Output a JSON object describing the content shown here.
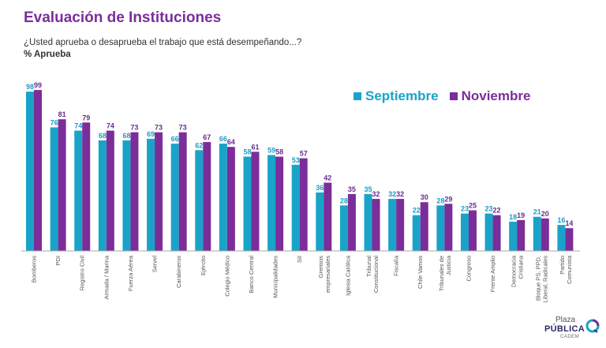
{
  "header": {
    "title": "Evaluación de Instituciones",
    "subtitle": "¿Usted aprueba o desaprueba el trabajo que está desempeñando...?",
    "metric": "% Aprueba"
  },
  "colors": {
    "septiembre": "#1aa3c8",
    "noviembre": "#7b2d9a",
    "label_sep": "#1a9cc6",
    "label_nov": "#6b2a8f"
  },
  "logo": {
    "line1": "Plaza",
    "line2": "PÚBLICA",
    "line3": "CADEM"
  },
  "chart_data": {
    "type": "bar",
    "categories": [
      "Bomberos",
      "PDI",
      "Registro Civil",
      "Armada / Marina",
      "Fuerza Aérea",
      "Servel",
      "Carabineros",
      "Ejército",
      "Colegio Médico",
      "Banco Central",
      "Municipalidades",
      "SII",
      "Gremios empresariales",
      "Iglesia Católica",
      "Tribunal Constitucional",
      "Fiscalía",
      "Chile Vamos",
      "Tribunales de Justicia",
      "Congreso",
      "Frente Amplio",
      "Democracia Cristiana",
      "Bloque PS, PPD, Liberal, Radicales",
      "Partido Comunista"
    ],
    "series": [
      {
        "name": "Septiembre",
        "values": [
          98,
          76,
          74,
          68,
          68,
          69,
          66,
          62,
          66,
          58,
          59,
          53,
          36,
          28,
          35,
          32,
          22,
          28,
          23,
          23,
          18,
          21,
          16
        ]
      },
      {
        "name": "Noviembre",
        "values": [
          99,
          81,
          79,
          74,
          73,
          73,
          73,
          67,
          64,
          61,
          58,
          57,
          42,
          35,
          32,
          32,
          30,
          29,
          25,
          22,
          19,
          20,
          14
        ]
      }
    ],
    "ylim": [
      0,
      100
    ],
    "legend_position": "top-right",
    "grid": false
  }
}
